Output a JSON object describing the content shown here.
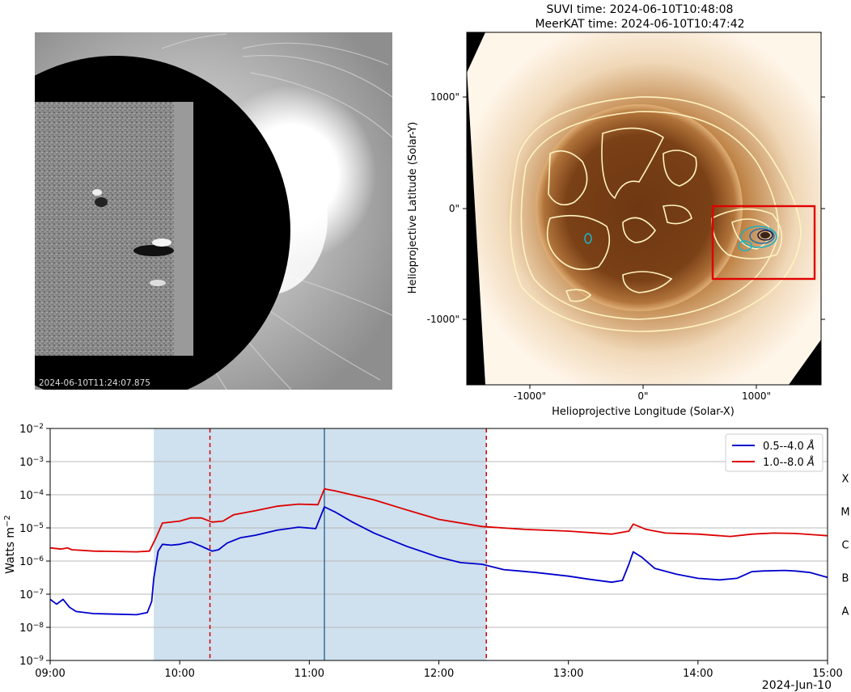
{
  "corona_panel": {
    "timestamp": "2024-06-10T11:24:07.875"
  },
  "solar_panel": {
    "title_line1": "SUVI time: 2024-06-10T10:48:08",
    "title_line2": "MeerKAT time: 2024-06-10T10:47:42",
    "xlabel": "Helioprojective Longitude (Solar-X)",
    "ylabel": "Helioprojective Latitude (Solar-Y)",
    "xticks": [
      "-1000\"",
      "0\"",
      "1000\""
    ],
    "yticks": [
      "1000\"",
      "0\"",
      "-1000\""
    ],
    "colors": {
      "sun": "#8a4a1c",
      "contour": "#fff4c8",
      "contour_inner": "#1aa0b0",
      "box": "#e00000"
    }
  },
  "chart_data": {
    "type": "line",
    "title": "",
    "xlabel": "",
    "ylabel": "Watts m",
    "ylabel_superscript": "−2",
    "date_label": "2024-Jun-10",
    "yscale": "log",
    "ylim_exp": [
      -9,
      -2
    ],
    "ytick_exps": [
      "−9",
      "−8",
      "−7",
      "−6",
      "−5",
      "−4",
      "−3",
      "−2"
    ],
    "x_hours_range": [
      9,
      15
    ],
    "xticks": [
      "09:00",
      "10:00",
      "11:00",
      "12:00",
      "13:00",
      "14:00",
      "15:00"
    ],
    "grid": true,
    "legend_position": "top-right",
    "flare_classes": [
      "A",
      "B",
      "C",
      "M",
      "X"
    ],
    "shaded_interval": [
      "09:48",
      "12:22"
    ],
    "dashed_lines": [
      "10:14",
      "12:22"
    ],
    "solid_line": "11:07",
    "series": [
      {
        "name": "0.5--4.0",
        "unit": "Å",
        "color": "#0000cc",
        "points": [
          [
            "09:00",
            7e-08
          ],
          [
            "09:03",
            5e-08
          ],
          [
            "09:06",
            7e-08
          ],
          [
            "09:09",
            4e-08
          ],
          [
            "09:12",
            3e-08
          ],
          [
            "09:20",
            2.6e-08
          ],
          [
            "09:30",
            2.5e-08
          ],
          [
            "09:40",
            2.4e-08
          ],
          [
            "09:45",
            2.8e-08
          ],
          [
            "09:47",
            6e-08
          ],
          [
            "09:48",
            3e-07
          ],
          [
            "09:50",
            2e-06
          ],
          [
            "09:52",
            3.2e-06
          ],
          [
            "09:56",
            3e-06
          ],
          [
            "10:00",
            3.2e-06
          ],
          [
            "10:05",
            3.8e-06
          ],
          [
            "10:10",
            2.8e-06
          ],
          [
            "10:15",
            2e-06
          ],
          [
            "10:18",
            2.2e-06
          ],
          [
            "10:22",
            3.5e-06
          ],
          [
            "10:28",
            5e-06
          ],
          [
            "10:35",
            6e-06
          ],
          [
            "10:45",
            8.5e-06
          ],
          [
            "10:55",
            1.05e-05
          ],
          [
            "11:03",
            9.5e-06
          ],
          [
            "11:07",
            4.3e-05
          ],
          [
            "11:12",
            3e-05
          ],
          [
            "11:20",
            1.5e-05
          ],
          [
            "11:30",
            7e-06
          ],
          [
            "11:45",
            2.8e-06
          ],
          [
            "12:00",
            1.3e-06
          ],
          [
            "12:10",
            9e-07
          ],
          [
            "12:20",
            8e-07
          ],
          [
            "12:30",
            5.5e-07
          ],
          [
            "12:45",
            4.5e-07
          ],
          [
            "13:00",
            3.5e-07
          ],
          [
            "13:10",
            2.8e-07
          ],
          [
            "13:20",
            2.3e-07
          ],
          [
            "13:25",
            2.6e-07
          ],
          [
            "13:28",
            8e-07
          ],
          [
            "13:30",
            1.9e-06
          ],
          [
            "13:34",
            1.3e-06
          ],
          [
            "13:40",
            6e-07
          ],
          [
            "13:50",
            4e-07
          ],
          [
            "14:00",
            3e-07
          ],
          [
            "14:10",
            2.7e-07
          ],
          [
            "14:18",
            3e-07
          ],
          [
            "14:25",
            4.8e-07
          ],
          [
            "14:30",
            5e-07
          ],
          [
            "14:40",
            5.2e-07
          ],
          [
            "14:45",
            5e-07
          ],
          [
            "14:52",
            4.5e-07
          ],
          [
            "15:00",
            3.2e-07
          ]
        ]
      },
      {
        "name": "1.0--8.0",
        "unit": "Å",
        "color": "#dd0000",
        "points": [
          [
            "09:00",
            2.5e-06
          ],
          [
            "09:05",
            2.3e-06
          ],
          [
            "09:08",
            2.5e-06
          ],
          [
            "09:10",
            2.2e-06
          ],
          [
            "09:20",
            2e-06
          ],
          [
            "09:40",
            1.9e-06
          ],
          [
            "09:46",
            2e-06
          ],
          [
            "09:49",
            5e-06
          ],
          [
            "09:52",
            1.4e-05
          ],
          [
            "10:00",
            1.6e-05
          ],
          [
            "10:05",
            2e-05
          ],
          [
            "10:10",
            2e-05
          ],
          [
            "10:15",
            1.5e-05
          ],
          [
            "10:20",
            1.6e-05
          ],
          [
            "10:25",
            2.5e-05
          ],
          [
            "10:35",
            3.3e-05
          ],
          [
            "10:45",
            4.5e-05
          ],
          [
            "10:55",
            5.2e-05
          ],
          [
            "11:04",
            5e-05
          ],
          [
            "11:07",
            0.00015
          ],
          [
            "11:12",
            0.00013
          ],
          [
            "11:30",
            7e-05
          ],
          [
            "11:45",
            3.5e-05
          ],
          [
            "12:00",
            1.8e-05
          ],
          [
            "12:20",
            1.1e-05
          ],
          [
            "12:40",
            9e-06
          ],
          [
            "13:00",
            8e-06
          ],
          [
            "13:20",
            6.5e-06
          ],
          [
            "13:28",
            8e-06
          ],
          [
            "13:30",
            1.3e-05
          ],
          [
            "13:36",
            9e-06
          ],
          [
            "13:45",
            7e-06
          ],
          [
            "14:00",
            6.5e-06
          ],
          [
            "14:15",
            5.5e-06
          ],
          [
            "14:25",
            6.5e-06
          ],
          [
            "14:35",
            7e-06
          ],
          [
            "14:45",
            6.8e-06
          ],
          [
            "15:00",
            5.8e-06
          ]
        ]
      }
    ]
  }
}
